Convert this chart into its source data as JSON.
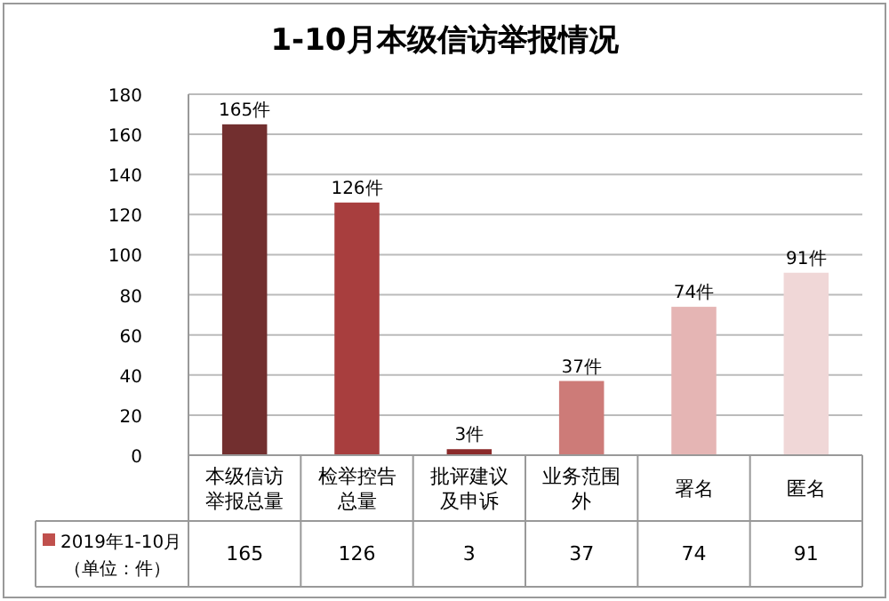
{
  "chart_data": {
    "type": "bar",
    "title": "1-10月本级信访举报情况",
    "categories": [
      "本级信访举报总量",
      "检举控告总量",
      "批评建议及申诉",
      "业务范围外",
      "署名",
      "匿名"
    ],
    "series": [
      {
        "name": "2019年1-10月",
        "color": "#c0504d",
        "values": [
          165,
          126,
          3,
          37,
          74,
          91
        ],
        "colors": [
          "#722f2f",
          "#a83e3e",
          "#8b2a2a",
          "#cd7b78",
          "#e5b5b4",
          "#f0d7d7"
        ]
      }
    ],
    "annotations": [
      "（单位：件）",
      {
        "text": "165件",
        "x": "本级信访举报总量",
        "y": 165
      },
      {
        "text": "126件",
        "x": "检举控告总量",
        "y": 126
      },
      {
        "text": "3件",
        "x": "批评建议及申诉",
        "y": 3
      },
      {
        "text": "37件",
        "x": "业务范围外",
        "y": 37
      },
      {
        "text": "74件",
        "x": "署名",
        "y": 74
      },
      {
        "text": "91件",
        "x": "匿名",
        "y": 91
      }
    ],
    "ylim": [
      0,
      180
    ],
    "yticks": [
      0,
      20,
      40,
      60,
      80,
      100,
      120,
      140,
      160,
      180
    ],
    "grid": "y",
    "legend": "bottom",
    "data_labels": true
  }
}
